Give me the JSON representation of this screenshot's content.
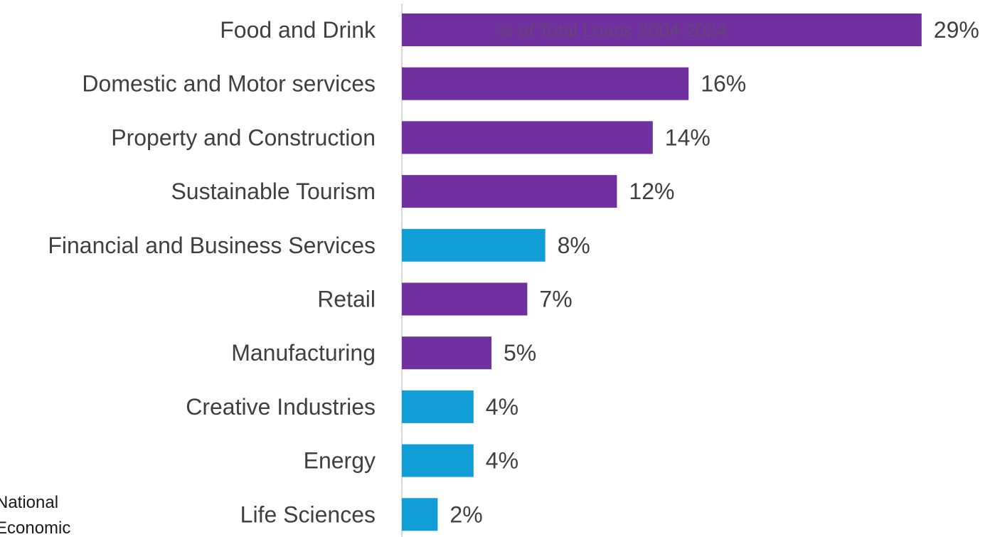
{
  "chart_data": {
    "type": "bar",
    "orientation": "horizontal",
    "title": "% of Total Loans 2004-2024",
    "categories": [
      "Food and Drink",
      "Domestic and Motor services",
      "Property and Construction",
      "Sustainable Tourism",
      "Financial and Business Services",
      "Retail",
      "Manufacturing",
      "Creative Industries",
      "Energy",
      "Life Sciences"
    ],
    "values": [
      29,
      16,
      14,
      12,
      8,
      7,
      5,
      4,
      4,
      2
    ],
    "data_labels": [
      "29%",
      "16%",
      "14%",
      "12%",
      "8%",
      "7%",
      "5%",
      "4%",
      "4%",
      "2%"
    ],
    "bar_colors": [
      "#7030a0",
      "#7030a0",
      "#7030a0",
      "#7030a0",
      "#119ed6",
      "#7030a0",
      "#7030a0",
      "#119ed6",
      "#119ed6",
      "#119ed6"
    ],
    "xlim": [
      0,
      30
    ],
    "grid": false,
    "axis_color": "#d9d9d9",
    "label_color": "#404040"
  },
  "side_text": [
    "National",
    "Economic"
  ]
}
